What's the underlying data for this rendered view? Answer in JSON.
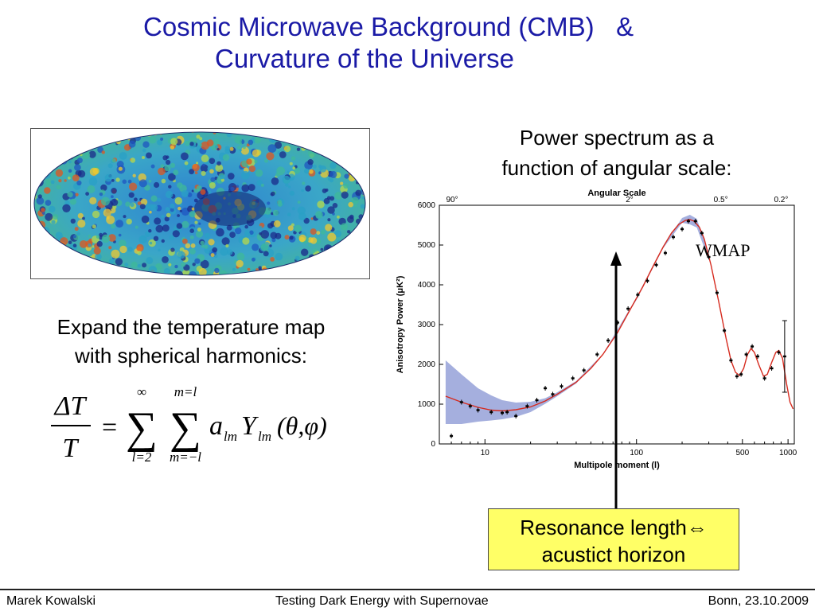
{
  "title": {
    "line1": "Cosmic Microwave Background (CMB)   &",
    "line2": "Curvature of the Universe"
  },
  "power_caption": {
    "line1": "Power spectrum as a",
    "line2": "function of angular scale:"
  },
  "expand_text": {
    "line1": "Expand the temperature map",
    "line2": "with spherical harmonics:"
  },
  "formula": {
    "numerator": "ΔT",
    "denominator": "T",
    "equals": "=",
    "sum1_upper": "∞",
    "sum1_lower": "l=2",
    "sum2_upper": "m=l",
    "sum2_lower": "m=−l",
    "coef": "a",
    "coef_sub": "lm",
    "func": "Y",
    "func_sub": "lm",
    "args": "(θ,φ)"
  },
  "wmap_label": "WMAP",
  "callout": {
    "line1": "Resonance length⇔",
    "line2": "acustict horizon",
    "background": "#ffff66"
  },
  "footer": {
    "left": "Marek Kowalski",
    "center": "Testing Dark Energy with Supernovae",
    "right": "Bonn, 23.10.2009"
  },
  "colors": {
    "title": "#1a1aa6",
    "model_curve": "#d62a1e",
    "error_band": "#8f9bd6",
    "arrow": "#000000"
  },
  "chart_data": {
    "type": "scatter",
    "title": "Angular Scale",
    "xlabel": "Multipole moment (l)",
    "ylabel": "Anisotropy Power (μK²)",
    "x_scale": "log",
    "xlim": [
      5,
      1100
    ],
    "ylim": [
      0,
      6000
    ],
    "x_ticks": [
      10,
      100,
      500,
      1000
    ],
    "x_tick_labels": [
      "10",
      "100",
      "500",
      "1000"
    ],
    "y_ticks": [
      0,
      1000,
      2000,
      3000,
      4000,
      5000,
      6000
    ],
    "y_tick_labels": [
      "0",
      "1000",
      "2000",
      "3000",
      "4000",
      "5000",
      "6000"
    ],
    "top_axis_label": "Angular Scale",
    "top_ticks": [
      {
        "l": 2,
        "label": "90°"
      },
      {
        "l": 90,
        "label": "2°"
      },
      {
        "l": 360,
        "label": "0.5°"
      },
      {
        "l": 900,
        "label": "0.2°"
      }
    ],
    "data_points": [
      {
        "x": 6,
        "y": 200
      },
      {
        "x": 7,
        "y": 1050
      },
      {
        "x": 8,
        "y": 950
      },
      {
        "x": 9,
        "y": 850
      },
      {
        "x": 11,
        "y": 800
      },
      {
        "x": 13,
        "y": 780
      },
      {
        "x": 14,
        "y": 800
      },
      {
        "x": 16,
        "y": 700
      },
      {
        "x": 19,
        "y": 950
      },
      {
        "x": 22,
        "y": 1100
      },
      {
        "x": 25,
        "y": 1400
      },
      {
        "x": 28,
        "y": 1250
      },
      {
        "x": 32,
        "y": 1450
      },
      {
        "x": 38,
        "y": 1650
      },
      {
        "x": 45,
        "y": 1850
      },
      {
        "x": 55,
        "y": 2250
      },
      {
        "x": 65,
        "y": 2600
      },
      {
        "x": 75,
        "y": 3050
      },
      {
        "x": 88,
        "y": 3400
      },
      {
        "x": 102,
        "y": 3750
      },
      {
        "x": 118,
        "y": 4100
      },
      {
        "x": 135,
        "y": 4500
      },
      {
        "x": 155,
        "y": 4800
      },
      {
        "x": 175,
        "y": 5200
      },
      {
        "x": 200,
        "y": 5400
      },
      {
        "x": 220,
        "y": 5600
      },
      {
        "x": 245,
        "y": 5600
      },
      {
        "x": 270,
        "y": 5300
      },
      {
        "x": 300,
        "y": 4700
      },
      {
        "x": 340,
        "y": 3800
      },
      {
        "x": 380,
        "y": 2850
      },
      {
        "x": 420,
        "y": 2100
      },
      {
        "x": 460,
        "y": 1700
      },
      {
        "x": 490,
        "y": 1750
      },
      {
        "x": 530,
        "y": 2250
      },
      {
        "x": 580,
        "y": 2450
      },
      {
        "x": 630,
        "y": 2200
      },
      {
        "x": 700,
        "y": 1650
      },
      {
        "x": 780,
        "y": 1900
      },
      {
        "x": 870,
        "y": 2300
      },
      {
        "x": 950,
        "y": 2200,
        "err": 900
      }
    ],
    "model_curve": [
      [
        5.5,
        1200
      ],
      [
        7,
        1050
      ],
      [
        9,
        920
      ],
      [
        11,
        850
      ],
      [
        13,
        830
      ],
      [
        16,
        860
      ],
      [
        20,
        930
      ],
      [
        25,
        1080
      ],
      [
        30,
        1250
      ],
      [
        40,
        1550
      ],
      [
        50,
        1900
      ],
      [
        60,
        2250
      ],
      [
        75,
        2800
      ],
      [
        90,
        3350
      ],
      [
        110,
        3950
      ],
      [
        130,
        4500
      ],
      [
        150,
        4950
      ],
      [
        170,
        5300
      ],
      [
        190,
        5520
      ],
      [
        210,
        5620
      ],
      [
        225,
        5640
      ],
      [
        240,
        5600
      ],
      [
        260,
        5450
      ],
      [
        280,
        5150
      ],
      [
        310,
        4500
      ],
      [
        350,
        3550
      ],
      [
        390,
        2650
      ],
      [
        420,
        2100
      ],
      [
        450,
        1800
      ],
      [
        480,
        1720
      ],
      [
        510,
        1900
      ],
      [
        540,
        2250
      ],
      [
        570,
        2400
      ],
      [
        600,
        2300
      ],
      [
        640,
        2000
      ],
      [
        690,
        1700
      ],
      [
        730,
        1750
      ],
      [
        780,
        2050
      ],
      [
        830,
        2300
      ],
      [
        870,
        2350
      ],
      [
        920,
        2150
      ],
      [
        980,
        1500
      ],
      [
        1030,
        1050
      ],
      [
        1080,
        880
      ]
    ],
    "error_band_upper": [
      [
        5.5,
        2100
      ],
      [
        7,
        1750
      ],
      [
        9,
        1400
      ],
      [
        11,
        1220
      ],
      [
        13,
        1100
      ],
      [
        16,
        1040
      ],
      [
        20,
        1060
      ],
      [
        25,
        1150
      ],
      [
        30,
        1300
      ],
      [
        40,
        1580
      ],
      [
        60,
        2260
      ],
      [
        100,
        3680
      ],
      [
        150,
        4980
      ],
      [
        200,
        5680
      ],
      [
        225,
        5760
      ],
      [
        250,
        5660
      ],
      [
        300,
        4780
      ]
    ],
    "error_band_lower": [
      [
        5.5,
        500
      ],
      [
        7,
        500
      ],
      [
        9,
        560
      ],
      [
        11,
        590
      ],
      [
        13,
        620
      ],
      [
        16,
        680
      ],
      [
        20,
        800
      ],
      [
        25,
        1010
      ],
      [
        30,
        1200
      ],
      [
        40,
        1520
      ],
      [
        60,
        2240
      ],
      [
        100,
        3620
      ],
      [
        150,
        4920
      ],
      [
        200,
        5560
      ],
      [
        225,
        5520
      ],
      [
        250,
        5440
      ],
      [
        300,
        4620
      ]
    ],
    "annotation": "WMAP"
  }
}
